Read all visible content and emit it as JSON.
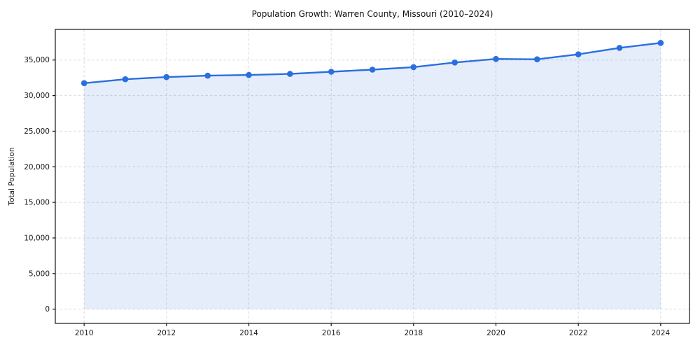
{
  "page": {
    "background": "#ffffff"
  },
  "chart_data": {
    "type": "line",
    "title": "Population Growth: Warren County, Missouri (2010–2024)",
    "xlabel": "",
    "ylabel": "Total Population",
    "x": [
      2010,
      2011,
      2012,
      2013,
      2014,
      2015,
      2016,
      2017,
      2018,
      2019,
      2020,
      2021,
      2022,
      2023,
      2024
    ],
    "series": [
      {
        "name": "Total Population",
        "values": [
          31750,
          32300,
          32600,
          32800,
          32900,
          33050,
          33350,
          33650,
          34000,
          34650,
          35150,
          35100,
          35800,
          36700,
          37400
        ]
      }
    ],
    "x_tick_values": [
      2010,
      2012,
      2014,
      2016,
      2018,
      2020,
      2022,
      2024
    ],
    "x_tick_labels": [
      "2010",
      "2012",
      "2014",
      "2016",
      "2018",
      "2020",
      "2022",
      "2024"
    ],
    "y_tick_values": [
      0,
      5000,
      10000,
      15000,
      20000,
      25000,
      30000,
      35000
    ],
    "y_tick_labels": [
      "0",
      "5,000",
      "10,000",
      "15,000",
      "20,000",
      "25,000",
      "30,000",
      "35,000"
    ],
    "xlim": [
      2009.3,
      2024.7
    ],
    "ylim": [
      -2000,
      39300
    ],
    "grid": true,
    "legend": "none",
    "area_fill": true,
    "area_baseline": 0,
    "line_color": "#2a6fdf",
    "fill_opacity": 0.12,
    "grid_color": "#d7d9dd",
    "spine_color": "#141414",
    "marker": "circle"
  }
}
